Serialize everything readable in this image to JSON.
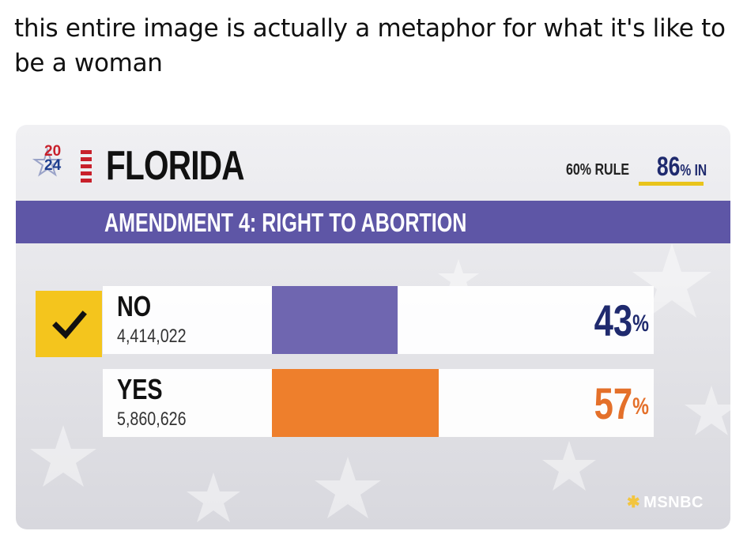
{
  "caption": "this entire image is actually a metaphor for what it's like to be a woman",
  "graphic": {
    "logo_year_top": "20",
    "logo_year_bottom": "24",
    "state": "FLORIDA",
    "rule_label": "60% RULE",
    "reporting_value": "86",
    "reporting_suffix": "% IN",
    "banner_title": "AMENDMENT 4: RIGHT TO ABORTION",
    "network": "MSNBC",
    "colors": {
      "banner": "#5e56a6",
      "no_bar": "#6f66b0",
      "yes_bar": "#ee7f2c",
      "check_highlight": "#f4c51d",
      "reporting_underline": "#e9c41c"
    }
  },
  "chart_data": {
    "type": "bar",
    "title": "AMENDMENT 4: RIGHT TO ABORTION",
    "categories": [
      "NO",
      "YES"
    ],
    "values": [
      43,
      57
    ],
    "value_suffix": "%",
    "votes": [
      "4,414,022",
      "5,860,626"
    ],
    "winner": "NO",
    "xlabel": "",
    "ylabel": "",
    "ylim": [
      0,
      100
    ]
  }
}
